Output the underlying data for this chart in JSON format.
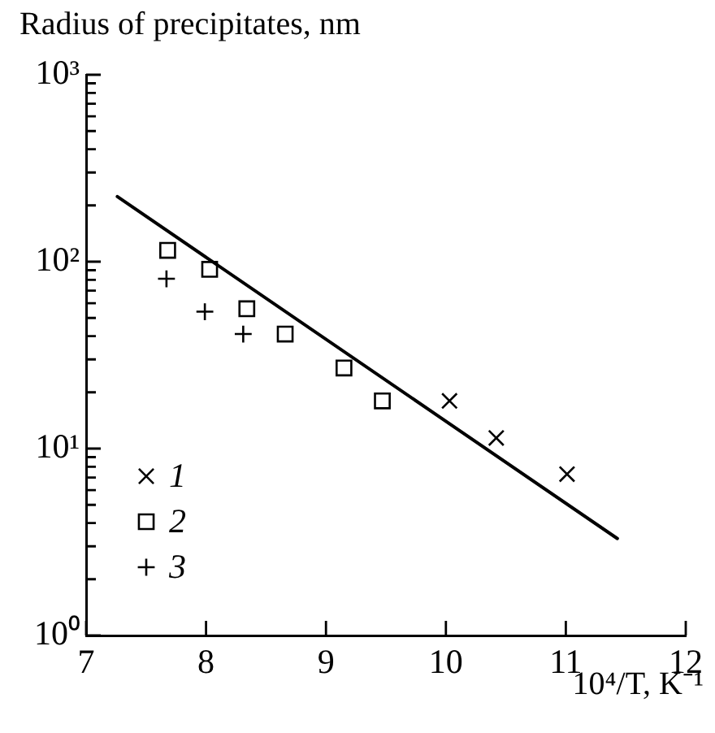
{
  "chart_data": {
    "type": "scatter",
    "xlabel": "10⁴/T, K⁻¹",
    "ylabel": "Radius of precipitates, nm",
    "xlim": [
      7,
      12
    ],
    "xticks": [
      7,
      8,
      9,
      10,
      11,
      12
    ],
    "ylim": [
      1,
      1000
    ],
    "yticks": [
      {
        "value": 1,
        "label": "10⁰"
      },
      {
        "value": 2,
        "label": null
      },
      {
        "value": 3,
        "label": null
      },
      {
        "value": 4,
        "label": null
      },
      {
        "value": 5,
        "label": null
      },
      {
        "value": 6,
        "label": null
      },
      {
        "value": 7,
        "label": null
      },
      {
        "value": 8,
        "label": null
      },
      {
        "value": 9,
        "label": null
      },
      {
        "value": 10,
        "label": "10¹"
      },
      {
        "value": 20,
        "label": null
      },
      {
        "value": 30,
        "label": null
      },
      {
        "value": 40,
        "label": null
      },
      {
        "value": 50,
        "label": null
      },
      {
        "value": 60,
        "label": null
      },
      {
        "value": 70,
        "label": null
      },
      {
        "value": 80,
        "label": null
      },
      {
        "value": 90,
        "label": null
      },
      {
        "value": 100,
        "label": "10²"
      },
      {
        "value": 200,
        "label": null
      },
      {
        "value": 300,
        "label": null
      },
      {
        "value": 400,
        "label": null
      },
      {
        "value": 500,
        "label": null
      },
      {
        "value": 600,
        "label": null
      },
      {
        "value": 700,
        "label": null
      },
      {
        "value": 800,
        "label": null
      },
      {
        "value": 900,
        "label": null
      },
      {
        "value": 1000,
        "label": "10³"
      }
    ],
    "log": true,
    "grid": false,
    "legend": "bottom left",
    "series": [
      {
        "name": "1",
        "color": "#000000",
        "marker": "x",
        "x": [
          10.03,
          10.42,
          11.01
        ],
        "values": [
          18,
          11.4,
          7.3
        ]
      },
      {
        "name": "2",
        "color": "#000000",
        "marker": "square",
        "x": [
          7.68,
          8.03,
          8.34,
          8.66,
          9.15,
          9.47
        ],
        "values": [
          115,
          91,
          56,
          41,
          27,
          18
        ]
      },
      {
        "name": "3",
        "color": "#000000",
        "marker": "cross",
        "x": [
          7.67,
          7.99,
          8.31
        ],
        "values": [
          81,
          54,
          41
        ]
      },
      {
        "type": "line",
        "color": "#000000",
        "marker": "none",
        "x": [
          7.26,
          11.43
        ],
        "values": [
          223,
          3.3
        ]
      }
    ]
  }
}
